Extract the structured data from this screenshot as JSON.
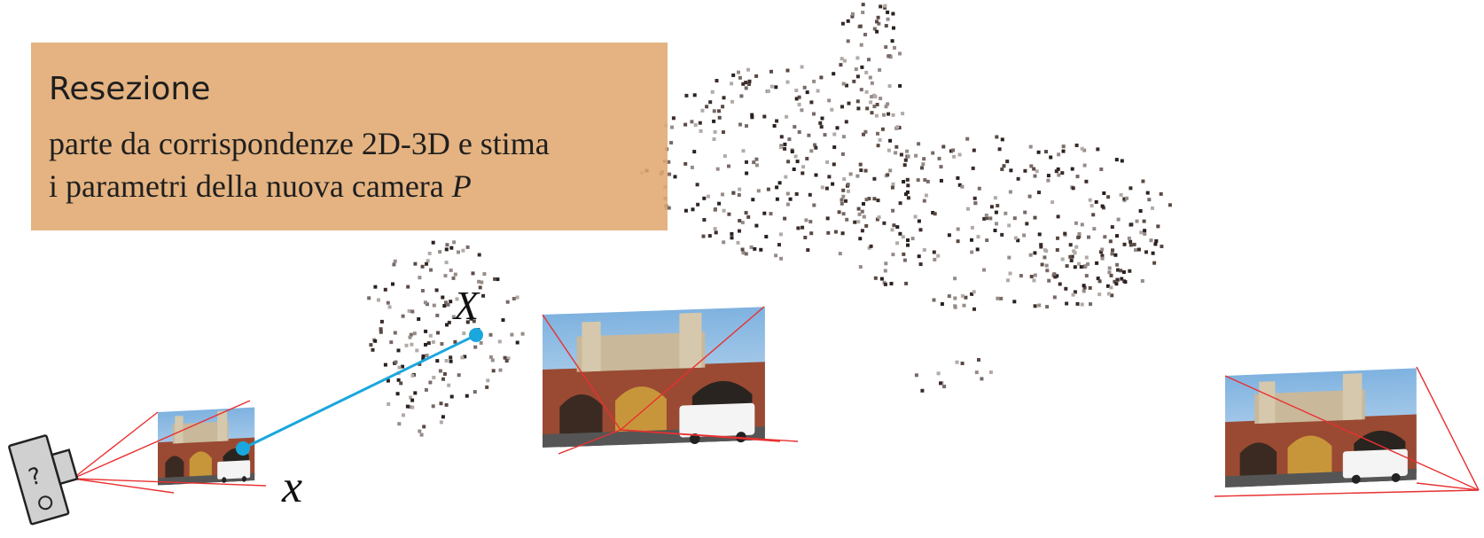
{
  "callout": {
    "title": "Resezione",
    "line1": "parte da corrispondenze 2D-3D e stima",
    "line2": "i parametri della nuova camera",
    "var": "P"
  },
  "labels": {
    "world_point": "X",
    "image_point": "x",
    "camera_glyph": "?"
  },
  "colors": {
    "callout_bg": "#e0a870",
    "ray": "#1aa7dd",
    "frustum": "#e83030",
    "points": "#3a3030"
  },
  "icons": {
    "unknown_camera": "camera-icon"
  }
}
